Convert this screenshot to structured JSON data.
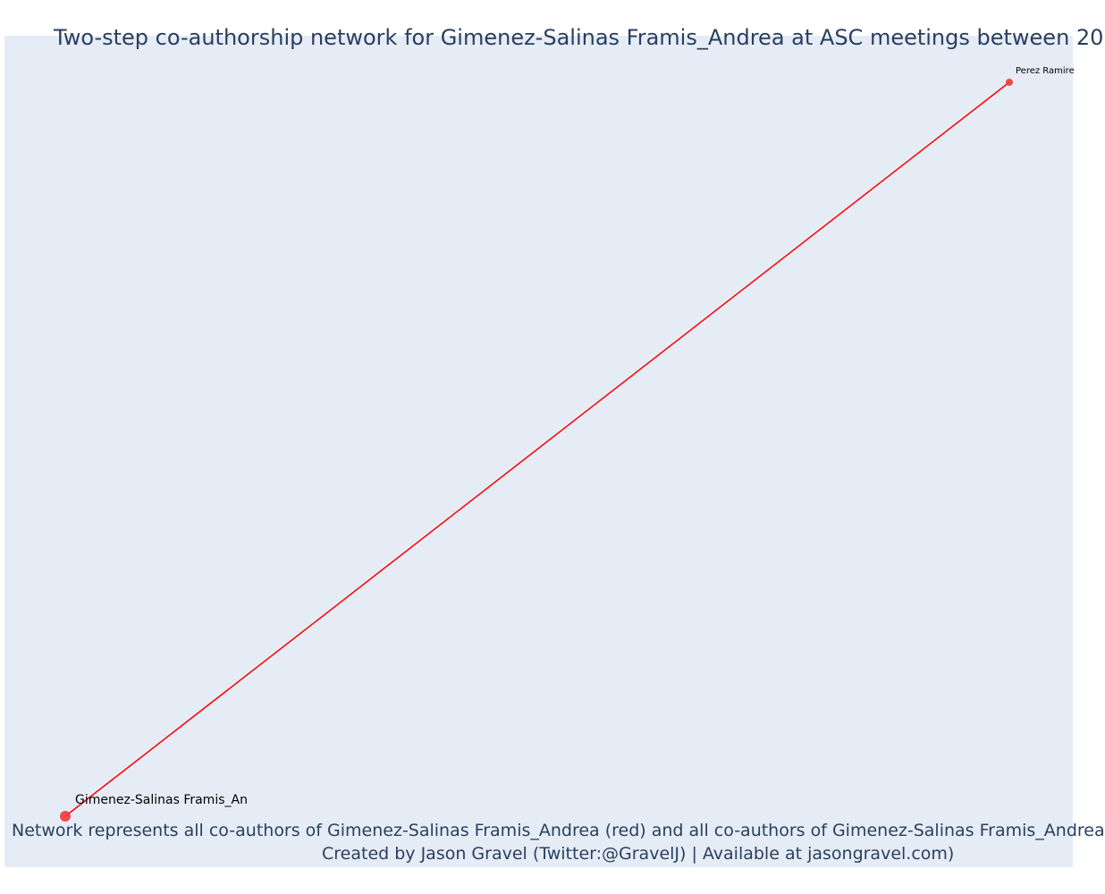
{
  "title": "Two-step co-authorship network for Gimenez-Salinas Framis_Andrea at ASC meetings between 20",
  "footer": {
    "line1": "Network represents all co-authors of Gimenez-Salinas Framis_Andrea (red) and all co-authors of Gimenez-Salinas Framis_Andrea",
    "line2": "Created by Jason Gravel (Twitter:@GravelJ) | Available at jasongravel.com)"
  },
  "colors": {
    "plot_background": "#e5ecf6",
    "edge": "#ff0000",
    "node": "#ef3b3b",
    "title_text": "#2a3f5f",
    "label_text": "#000000"
  },
  "chart_data": {
    "type": "network",
    "nodes": [
      {
        "id": "focal",
        "label": "Gimenez-Salinas Framis_An",
        "color": "#ef3b3b",
        "role": "focal"
      },
      {
        "id": "coauthor1",
        "label": "Perez Ramire",
        "color": "#ef3b3b",
        "role": "co-author"
      }
    ],
    "edges": [
      {
        "source": "focal",
        "target": "coauthor1",
        "color": "#ff0000"
      }
    ]
  }
}
